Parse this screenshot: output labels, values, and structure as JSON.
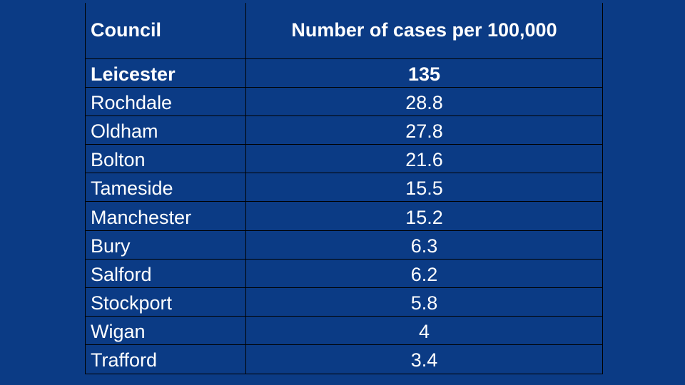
{
  "chart_data": {
    "type": "table",
    "columns": [
      "Council",
      "Number of cases per 100,000"
    ],
    "rows": [
      {
        "council": "Leicester",
        "value": "135",
        "highlight": true
      },
      {
        "council": "Rochdale",
        "value": "28.8"
      },
      {
        "council": "Oldham",
        "value": "27.8"
      },
      {
        "council": "Bolton",
        "value": "21.6"
      },
      {
        "council": "Tameside",
        "value": "15.5"
      },
      {
        "council": "Manchester",
        "value": "15.2"
      },
      {
        "council": "Bury",
        "value": "6.3"
      },
      {
        "council": "Salford",
        "value": "6.2"
      },
      {
        "council": "Stockport",
        "value": "5.8"
      },
      {
        "council": "Wigan",
        "value": "4"
      },
      {
        "council": "Trafford",
        "value": "3.4"
      }
    ]
  },
  "colors": {
    "background": "#0b3b85",
    "text": "#ffffff",
    "grid": "#000000"
  }
}
